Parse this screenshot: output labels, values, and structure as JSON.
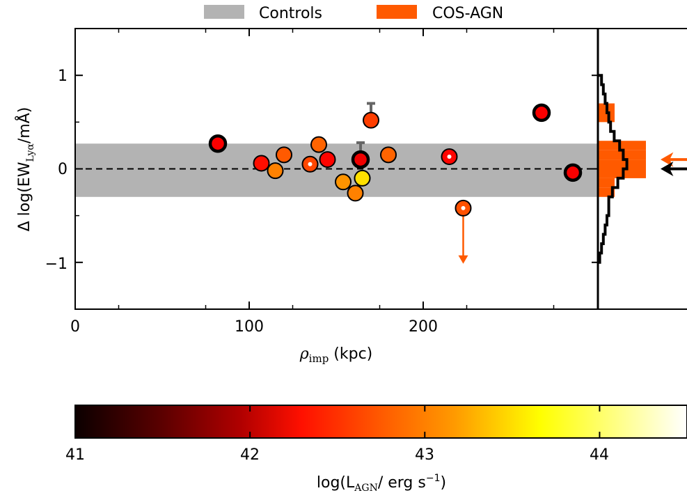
{
  "legend": {
    "placement": "top-center",
    "entries": [
      {
        "label": "Controls",
        "color": "#b3b3b3"
      },
      {
        "label": "COS-AGN",
        "color": "#ff5a00"
      }
    ]
  },
  "chart_data": [
    {
      "type": "scatter",
      "xlabel_main": "ρ",
      "xlabel_sub": "imp",
      "xlabel_rest": " (kpc)",
      "ylabel_main": "Δ log(EW",
      "ylabel_sub": "Lyα",
      "ylabel_rest": "/mÅ)",
      "xlim": [
        0,
        300
      ],
      "ylim": [
        -1.5,
        1.5
      ],
      "x_ticks": [
        0,
        100,
        200
      ],
      "x_tick_labels": [
        "0",
        "100",
        "200"
      ],
      "y_ticks": [
        -1,
        0,
        1
      ],
      "y_tick_labels": [
        "−1",
        "0",
        "1"
      ],
      "grid": false,
      "reference_line": {
        "y": 0,
        "style": "dashed"
      },
      "control_band": {
        "y_min": -0.3,
        "y_max": 0.27,
        "color": "#b3b3b3"
      },
      "points": [
        {
          "x": 82,
          "y": 0.27,
          "log_lagn": 42.2,
          "edge": "thick"
        },
        {
          "x": 107,
          "y": 0.06,
          "log_lagn": 42.35,
          "edge": "normal"
        },
        {
          "x": 115,
          "y": -0.02,
          "log_lagn": 42.95,
          "edge": "normal"
        },
        {
          "x": 120,
          "y": 0.15,
          "log_lagn": 42.75,
          "edge": "normal"
        },
        {
          "x": 135,
          "y": 0.05,
          "log_lagn": 42.65,
          "edge": "normal",
          "inner_dot": true
        },
        {
          "x": 140,
          "y": 0.26,
          "log_lagn": 42.8,
          "edge": "normal"
        },
        {
          "x": 145,
          "y": 0.1,
          "log_lagn": 42.3,
          "edge": "normal"
        },
        {
          "x": 154,
          "y": -0.14,
          "log_lagn": 43.05,
          "edge": "normal"
        },
        {
          "x": 161,
          "y": -0.26,
          "log_lagn": 42.95,
          "edge": "normal"
        },
        {
          "x": 164,
          "y": 0.1,
          "log_lagn": 42.15,
          "edge": "thick",
          "err_up": 0.18
        },
        {
          "x": 165,
          "y": -0.1,
          "log_lagn": 43.45,
          "edge": "normal"
        },
        {
          "x": 170,
          "y": 0.52,
          "log_lagn": 42.6,
          "edge": "normal",
          "err_up": 0.18
        },
        {
          "x": 180,
          "y": 0.15,
          "log_lagn": 42.8,
          "edge": "normal"
        },
        {
          "x": 215,
          "y": 0.13,
          "log_lagn": 42.3,
          "edge": "normal",
          "inner_dot": true
        },
        {
          "x": 223,
          "y": -0.42,
          "log_lagn": 42.7,
          "edge": "normal",
          "inner_dot": true,
          "upper_limit_to": -1.0
        },
        {
          "x": 268,
          "y": 0.6,
          "log_lagn": 42.2,
          "edge": "thick"
        },
        {
          "x": 286,
          "y": -0.04,
          "log_lagn": 42.2,
          "edge": "thick"
        }
      ]
    },
    {
      "type": "histogram",
      "orientation": "horizontal",
      "shares_y_axis": true,
      "series": [
        {
          "name": "Controls",
          "style": "step",
          "color": "#000000",
          "bins": [
            -1.0,
            -0.9,
            -0.8,
            -0.7,
            -0.6,
            -0.5,
            -0.4,
            -0.3,
            -0.2,
            -0.1,
            0.0,
            0.1,
            0.2,
            0.3,
            0.4,
            0.5,
            0.6,
            0.7,
            0.8,
            0.9,
            1.0
          ],
          "counts": [
            1,
            2,
            3,
            4,
            5,
            6,
            6,
            8,
            11,
            14,
            16,
            14,
            12,
            9,
            7,
            6,
            5,
            4,
            3,
            2
          ]
        },
        {
          "name": "COS-AGN",
          "style": "filled",
          "color": "#ff5a00",
          "bins": [
            -0.3,
            -0.2,
            -0.1,
            0.0,
            0.1,
            0.2,
            0.3,
            0.5,
            0.7
          ],
          "counts": [
            8,
            8,
            23,
            23,
            23,
            23,
            0,
            8
          ]
        }
      ],
      "medians": [
        {
          "name": "COS-AGN",
          "y": 0.1,
          "color": "#ff5a00"
        },
        {
          "name": "Controls",
          "y": 0.0,
          "color": "#000000"
        }
      ]
    },
    {
      "type": "colorbar",
      "label_main": "log(L",
      "label_sub": "AGN",
      "label_rest": "/ erg s",
      "label_sup": "−1",
      "label_close": ")",
      "range": [
        41,
        44.5
      ],
      "ticks": [
        41,
        42,
        43,
        44
      ],
      "tick_labels": [
        "41",
        "42",
        "43",
        "44"
      ],
      "colormap": "hot"
    }
  ]
}
